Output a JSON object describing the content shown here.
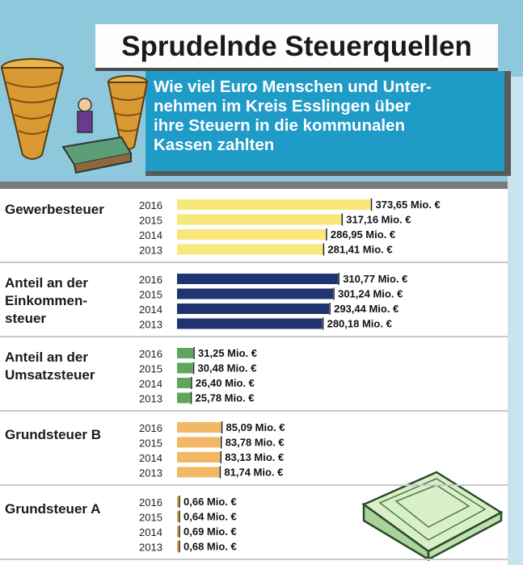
{
  "header": {
    "title": "Sprudelnde Steuerquellen",
    "subtitle_lines": [
      "Wie viel Euro Menschen und Unter-",
      "nehmen im Kreis Esslingen über",
      "ihre Steuern in die kommunalen",
      "Kassen zahlten"
    ]
  },
  "icons": {
    "left": "coin-stacks-illustration",
    "right": "money-bundle-illustration"
  },
  "chart_data": {
    "type": "bar",
    "orientation": "horizontal",
    "unit_suffix": "Mio. €",
    "years": [
      "2016",
      "2015",
      "2014",
      "2013"
    ],
    "groups": [
      {
        "name_lines": [
          "Gewerbesteuer"
        ],
        "color": "#f8e77a",
        "values": [
          373.65,
          317.16,
          286.95,
          281.41
        ],
        "labels": [
          "373,65 Mio. €",
          "317,16 Mio. €",
          "286,95 Mio. €",
          "281,41 Mio. €"
        ]
      },
      {
        "name_lines": [
          "Anteil an der",
          "Einkommen-",
          "steuer"
        ],
        "color": "#1f3572",
        "values": [
          310.77,
          301.24,
          293.44,
          280.18
        ],
        "labels": [
          "310,77 Mio. €",
          "301,24 Mio. €",
          "293,44 Mio. €",
          "280,18 Mio. €"
        ]
      },
      {
        "name_lines": [
          "Anteil an der",
          "Umsatzsteuer"
        ],
        "color": "#5ea65c",
        "values": [
          31.25,
          30.48,
          26.4,
          25.78
        ],
        "labels": [
          "31,25 Mio. €",
          "30,48 Mio. €",
          "26,40 Mio. €",
          "25,78 Mio. €"
        ]
      },
      {
        "name_lines": [
          "Grundsteuer B"
        ],
        "color": "#f2b765",
        "values": [
          85.09,
          83.78,
          83.13,
          81.74
        ],
        "labels": [
          "85,09 Mio. €",
          "83,78 Mio. €",
          "83,13 Mio. €",
          "81,74 Mio. €"
        ]
      },
      {
        "name_lines": [
          "Grundsteuer A"
        ],
        "color": "#e8a040",
        "values": [
          0.66,
          0.64,
          0.69,
          0.68
        ],
        "labels": [
          "0,66 Mio. €",
          "0,64 Mio. €",
          "0,69 Mio. €",
          "0,68 Mio. €"
        ]
      }
    ]
  }
}
